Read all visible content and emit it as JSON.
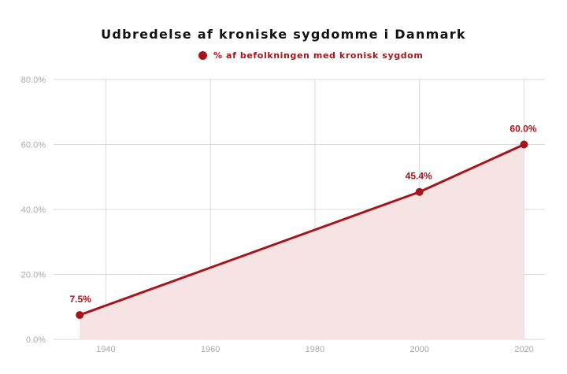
{
  "chart_data": {
    "type": "area",
    "title": "Udbredelse af kroniske sygdomme i Danmark",
    "series": [
      {
        "name": "% af befolkningen med kronisk sygdom",
        "x": [
          1935,
          2000,
          2020
        ],
        "values": [
          7.5,
          45.4,
          60.0
        ],
        "labels": [
          "7.5%",
          "45.4%",
          "60.0%"
        ]
      }
    ],
    "xlim": [
      1930,
      2024
    ],
    "ylim": [
      0,
      80
    ],
    "xticks": [
      1940,
      1960,
      1980,
      2000,
      2020
    ],
    "yticks": [
      0,
      20,
      40,
      60,
      80
    ],
    "ytick_labels": [
      "0.0%",
      "20.0%",
      "40.0%",
      "60.0%",
      "80.0%"
    ],
    "xlabel": "",
    "ylabel": "",
    "grid": true,
    "legend": "top-center",
    "colors": {
      "line": "#a8141b",
      "fill": "#f6e3e3",
      "grid": "#d9d9d9",
      "tick": "#aaaaaa"
    }
  }
}
